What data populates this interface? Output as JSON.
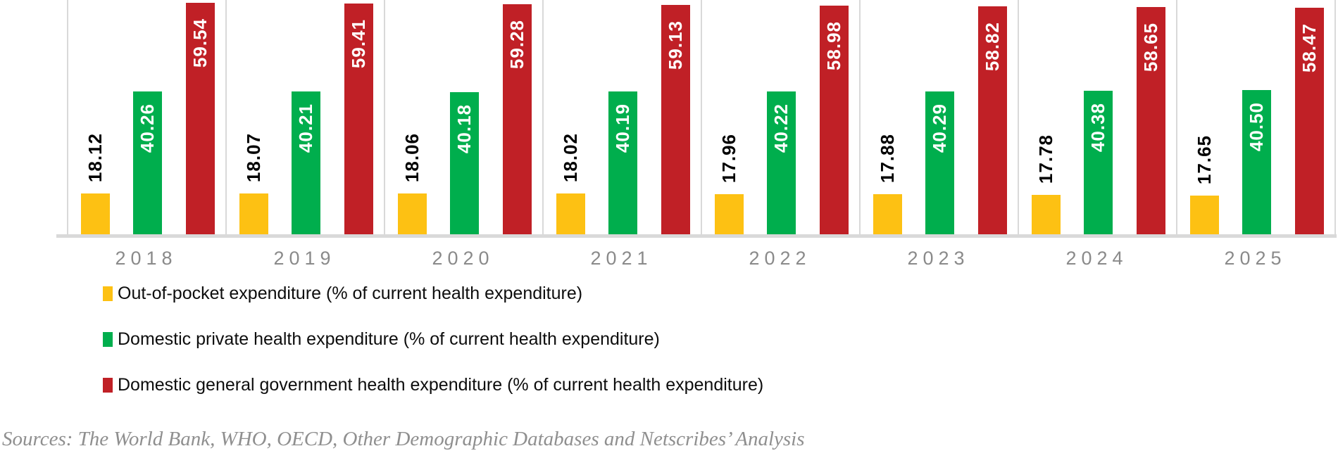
{
  "chart_data": {
    "type": "bar",
    "title": "",
    "xlabel": "",
    "ylabel": "",
    "categories": [
      "2018",
      "2019",
      "2020",
      "2021",
      "2022",
      "2023",
      "2024",
      "2025"
    ],
    "series": [
      {
        "key": "oop",
        "name": "Out-of-pocket expenditure (% of current health expenditure)",
        "color": "#FDC113",
        "label_color": "#000000",
        "label_position": "above-bar",
        "values": [
          18.12,
          18.07,
          18.06,
          18.02,
          17.96,
          17.88,
          17.78,
          17.65
        ]
      },
      {
        "key": "private",
        "name": "Domestic private health expenditure (% of current health expenditure)",
        "color": "#00AE4D",
        "label_color": "#FFFFFF",
        "label_position": "inside-top",
        "values": [
          40.26,
          40.21,
          40.18,
          40.19,
          40.22,
          40.29,
          40.38,
          40.5
        ]
      },
      {
        "key": "government",
        "name": "Domestic general government health expenditure (% of current health expenditure)",
        "color": "#C02026",
        "label_color": "#FFFFFF",
        "label_position": "inside-top",
        "values": [
          59.54,
          59.41,
          59.28,
          59.13,
          58.98,
          58.82,
          58.65,
          58.47
        ]
      }
    ],
    "value_labels_decimals": 2,
    "value_labels_orientation": "vertical-bottom-up",
    "axis": {
      "value_axis_visible": false,
      "category_axis_color": "#8a8a8a"
    },
    "grid": "vertical-group-separators",
    "separator_color": "#d9d9d9",
    "legend_position": "bottom-left"
  },
  "footer": {
    "sources": "Sources: The World Bank, WHO, OECD, Other Demographic Databases and Netscribes’ Analysis"
  }
}
